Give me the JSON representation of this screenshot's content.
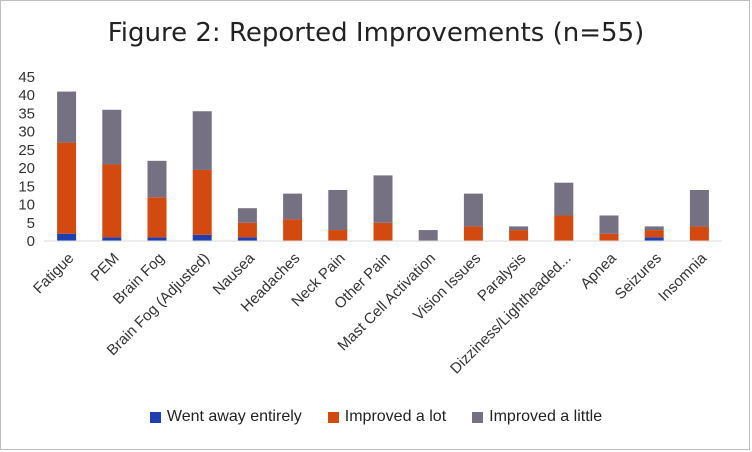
{
  "chart_data": {
    "type": "bar",
    "stacked": true,
    "title": "Figure 2: Reported Improvements (n=55)",
    "xlabel": "",
    "ylabel": "",
    "ylim": [
      0,
      45
    ],
    "yticks": [
      0,
      5,
      10,
      15,
      20,
      25,
      30,
      35,
      40,
      45
    ],
    "grid": false,
    "legend_position": "bottom",
    "categories": [
      "Fatigue",
      "PEM",
      "Brain Fog",
      "Brain Fog (Adjusted)",
      "Nausea",
      "Headaches",
      "Neck Pain",
      "Other Pain",
      "Mast Cell Activation",
      "Vision Issues",
      "Paralysis",
      "Dizziness/Lightheaded...",
      "Apnea",
      "Seizures",
      "Insomnia"
    ],
    "series": [
      {
        "name": "Went away entirely",
        "color": "#1f3fb0",
        "values": [
          2,
          1,
          1,
          1.7,
          1,
          0,
          0,
          0,
          0,
          0,
          0,
          0,
          0,
          1,
          0
        ]
      },
      {
        "name": "Improved a lot",
        "color": "#d24a0f",
        "values": [
          25,
          20,
          11,
          17.8,
          4,
          6,
          3,
          5,
          0,
          4,
          3,
          7,
          2,
          2,
          4
        ]
      },
      {
        "name": "Improved a little",
        "color": "#757082",
        "values": [
          14,
          15,
          10,
          16.1,
          4,
          7,
          11,
          13,
          3,
          9,
          1,
          9,
          5,
          1,
          10
        ]
      }
    ]
  }
}
